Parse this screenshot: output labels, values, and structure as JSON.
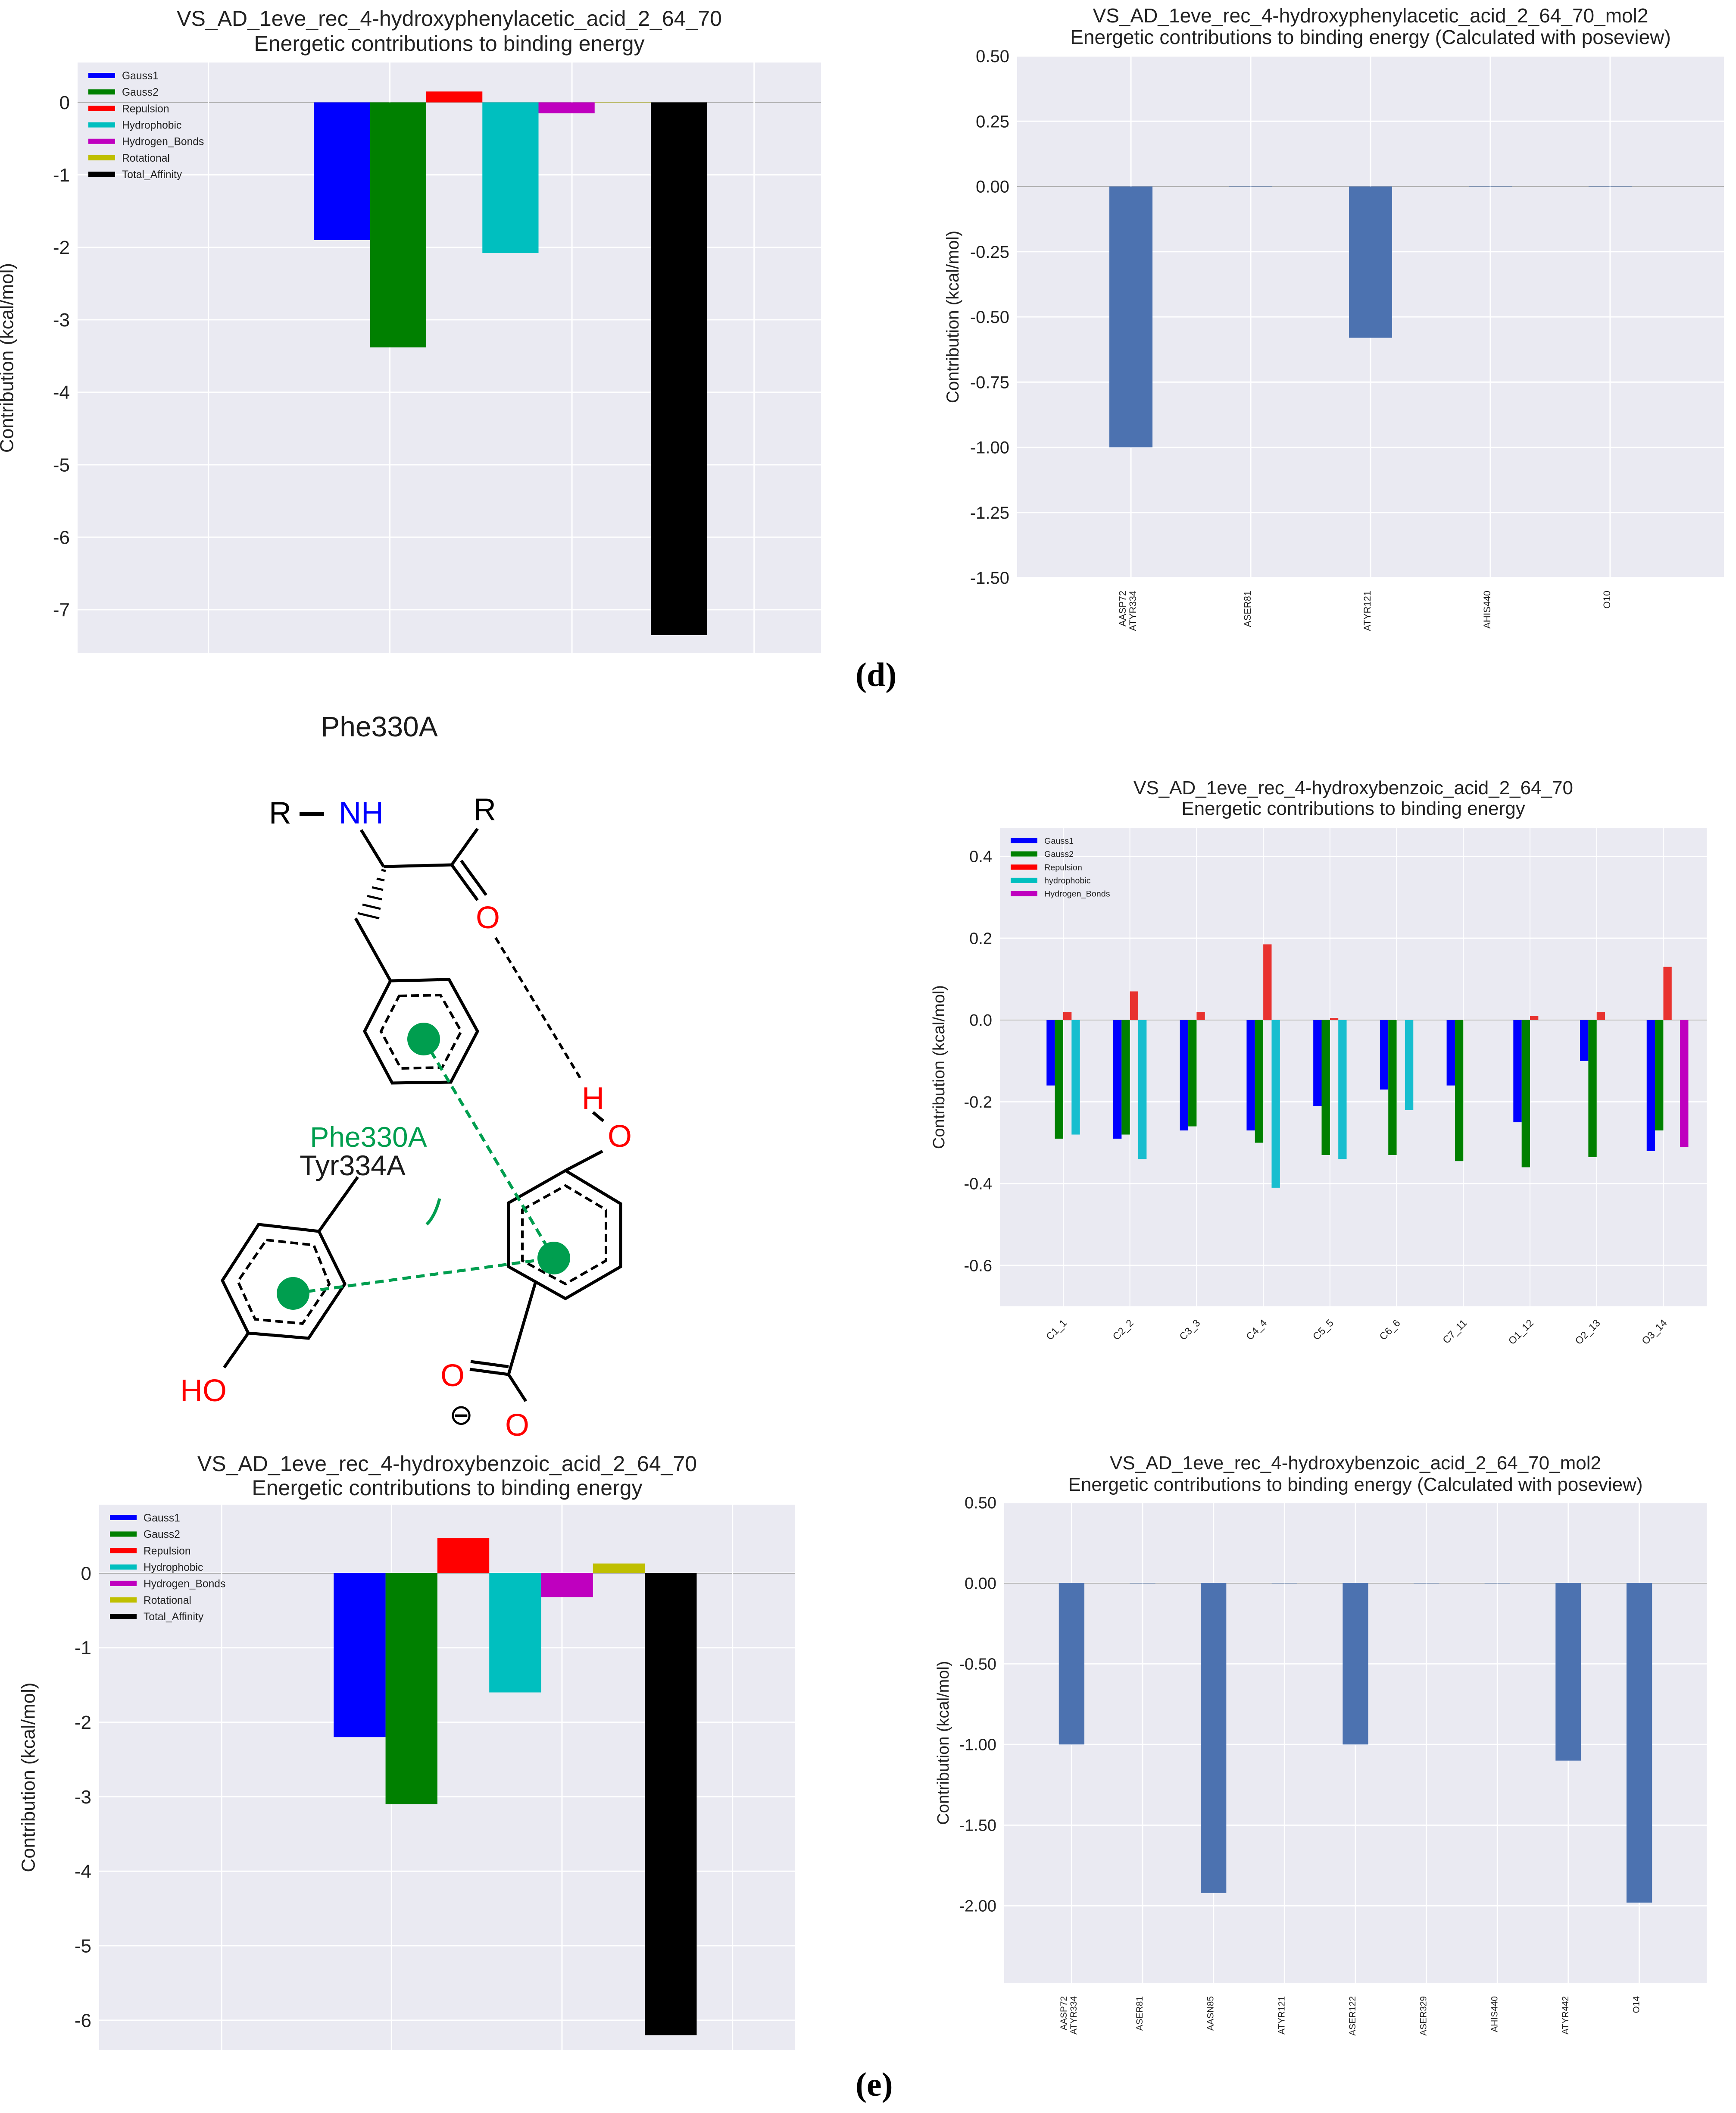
{
  "colors": {
    "plot_bg": "#EAEAF2",
    "grid": "#FFFFFF",
    "Gauss1": "#0000FF",
    "Gauss2": "#008000",
    "Repulsion": "#FF0000",
    "Hydrophobic": "#00BFBF",
    "Hydrogen_Bonds": "#BF00BF",
    "Rotational": "#BFBF00",
    "Total_Affinity": "#000000",
    "poseview_bar": "#4C72B0",
    "atom_bar_red": "#E8322F",
    "atom_bar_cyan": "#17BECF",
    "interaction_green": "#009E4F",
    "heteroatom_red": "#FF0000",
    "nitrogen_blue": "#0000FF"
  },
  "panel_labels": {
    "d": "(d)",
    "e": "(e)"
  },
  "molecule": {
    "title": "Phe330A",
    "labels": {
      "r1": "R",
      "nh": "NH",
      "r2": "R",
      "o_carbonyl": "O",
      "h": "H",
      "o_hydroxyl": "O",
      "phe": "Phe330A",
      "tyr": "Tyr334A",
      "ho": "HO",
      "o_carboxyl_1": "O",
      "o_carboxyl_2": "O",
      "charge": "⊖"
    }
  },
  "chart_data": [
    {
      "id": "d-left",
      "type": "bar",
      "title": "VS_AD_1eve_rec_4-hydroxyphenylacetic_acid_2_64_70",
      "subtitle": "Energetic contributions to binding energy",
      "xlabel": "",
      "ylabel": "Contribution (kcal/mol)",
      "ylim": [
        -7.6,
        0.55
      ],
      "yticks": [
        0,
        -1,
        -2,
        -3,
        -4,
        -5,
        -6,
        -7
      ],
      "grid": true,
      "legend_position": "top-left",
      "series": [
        {
          "name": "Gauss1",
          "value": -1.9
        },
        {
          "name": "Gauss2",
          "value": -3.38
        },
        {
          "name": "Repulsion",
          "value": 0.15
        },
        {
          "name": "Hydrophobic",
          "value": -2.08
        },
        {
          "name": "Hydrogen_Bonds",
          "value": -0.15
        },
        {
          "name": "Rotational",
          "value": 0.0
        },
        {
          "name": "Total_Affinity",
          "value": -7.35
        }
      ]
    },
    {
      "id": "d-right",
      "type": "bar",
      "title": "VS_AD_1eve_rec_4-hydroxyphenylacetic_acid_2_64_70_mol2",
      "subtitle": "Energetic contributions to binding energy (Calculated with poseview)",
      "xlabel": "",
      "ylabel": "Contribution (kcal/mol)",
      "ylim": [
        -1.5,
        0.5
      ],
      "yticks": [
        "0.50",
        "0.25",
        "0.00",
        "-0.25",
        "-0.50",
        "-0.75",
        "-1.00",
        "-1.25",
        "-1.50"
      ],
      "grid": true,
      "categories": [
        "AASP72\nATYR334",
        "ASER81",
        "ATYR121",
        "AHIS440",
        "O10"
      ],
      "values": [
        -1.0,
        0.0,
        -0.58,
        0.0,
        0.0
      ]
    },
    {
      "id": "e-right-top",
      "type": "bar",
      "title": "VS_AD_1eve_rec_4-hydroxybenzoic_acid_2_64_70",
      "subtitle": "Energetic contributions to binding energy",
      "xlabel": "",
      "ylabel": "Contribution (kcal/mol)",
      "ylim": [
        -0.7,
        0.47
      ],
      "yticks": [
        "0.4",
        "0.2",
        "0.0",
        "-0.2",
        "-0.4",
        "-0.6"
      ],
      "grid": true,
      "legend_position": "top-left",
      "categories": [
        "C1_1",
        "C2_2",
        "C3_3",
        "C4_4",
        "C5_5",
        "C6_6",
        "C7_11",
        "O1_12",
        "O2_13",
        "O3_14"
      ],
      "series": [
        {
          "name": "Gauss1",
          "values": [
            -0.16,
            -0.29,
            -0.27,
            -0.27,
            -0.21,
            -0.17,
            -0.16,
            -0.25,
            -0.1,
            -0.32
          ]
        },
        {
          "name": "Gauss2",
          "values": [
            -0.29,
            -0.28,
            -0.26,
            -0.3,
            -0.33,
            -0.33,
            -0.345,
            -0.36,
            -0.335,
            -0.27
          ]
        },
        {
          "name": "Repulsion",
          "values": [
            0.02,
            0.07,
            0.02,
            0.185,
            0.005,
            0.0,
            0.0,
            0.01,
            0.02,
            0.13
          ]
        },
        {
          "name": "hydrophobic",
          "values": [
            -0.28,
            -0.34,
            0.0,
            -0.41,
            -0.34,
            -0.22,
            0.0,
            0.0,
            0.0,
            0.0
          ]
        },
        {
          "name": "Hydrogen_Bonds",
          "values": [
            0,
            0,
            0,
            0,
            0,
            0,
            0,
            0,
            0,
            -0.31
          ]
        }
      ]
    },
    {
      "id": "e-left",
      "type": "bar",
      "title": "VS_AD_1eve_rec_4-hydroxybenzoic_acid_2_64_70",
      "subtitle": "Energetic contributions to binding energy",
      "xlabel": "",
      "ylabel": "Contribution (kcal/mol)",
      "ylim": [
        -6.4,
        0.92
      ],
      "yticks": [
        0,
        -1,
        -2,
        -3,
        -4,
        -5,
        -6
      ],
      "grid": true,
      "legend_position": "top-left",
      "series": [
        {
          "name": "Gauss1",
          "value": -2.2
        },
        {
          "name": "Gauss2",
          "value": -3.1
        },
        {
          "name": "Repulsion",
          "value": 0.47
        },
        {
          "name": "Hydrophobic",
          "value": -1.6
        },
        {
          "name": "Hydrogen_Bonds",
          "value": -0.32
        },
        {
          "name": "Rotational",
          "value": 0.13
        },
        {
          "name": "Total_Affinity",
          "value": -6.2
        }
      ]
    },
    {
      "id": "e-right-bottom",
      "type": "bar",
      "title": "VS_AD_1eve_rec_4-hydroxybenzoic_acid_2_64_70_mol2",
      "subtitle": "Energetic contributions to binding energy (Calculated with poseview)",
      "xlabel": "",
      "ylabel": "Contribution (kcal/mol)",
      "ylim": [
        -2.48,
        0.5
      ],
      "yticks": [
        "0.50",
        "0.00",
        "-0.50",
        "-1.00",
        "-1.50",
        "-2.00"
      ],
      "grid": true,
      "categories": [
        "AASP72\nATYR334",
        "ASER81",
        "AASN85",
        "ATYR121",
        "ASER122",
        "ASER329",
        "AHIS440",
        "ATYR442",
        "O14"
      ],
      "values": [
        -1.0,
        0.0,
        -1.92,
        0.0,
        -1.0,
        0.0,
        0.0,
        -1.1,
        -1.98
      ]
    }
  ]
}
